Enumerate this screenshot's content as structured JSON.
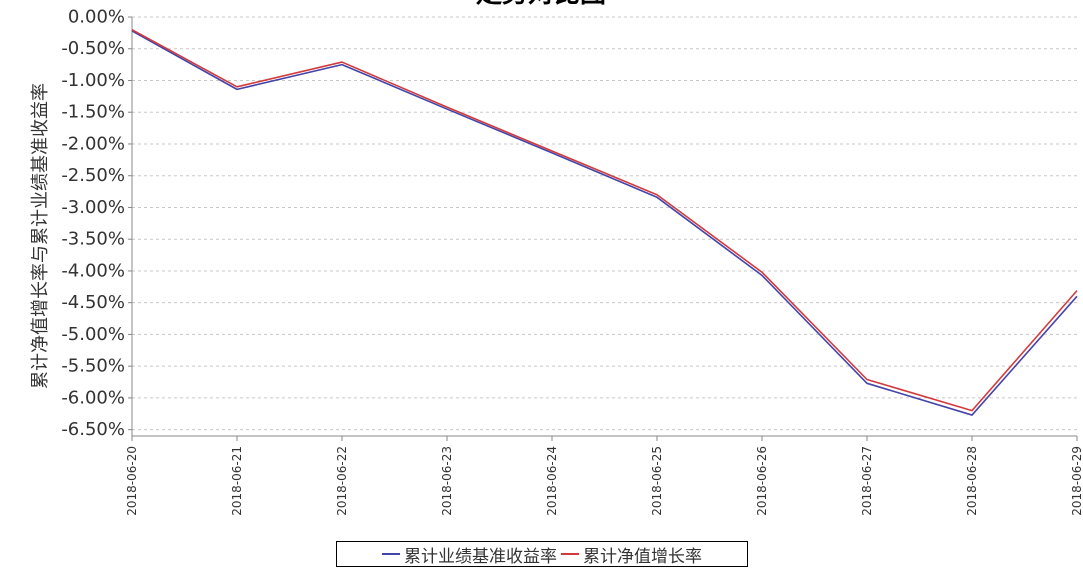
{
  "chart_data": {
    "type": "line",
    "title": "走势对比图",
    "xlabel": "",
    "ylabel": "累计净值增长率与累计业绩基准收益率",
    "categories": [
      "2018-06-20",
      "2018-06-21",
      "2018-06-22",
      "2018-06-23",
      "2018-06-24",
      "2018-06-25",
      "2018-06-26",
      "2018-06-27",
      "2018-06-28",
      "2018-06-29"
    ],
    "y_ticks": [
      "0.00%",
      "-0.50%",
      "-1.00%",
      "-1.50%",
      "-2.00%",
      "-2.50%",
      "-3.00%",
      "-3.50%",
      "-4.00%",
      "-4.50%",
      "-5.00%",
      "-5.50%",
      "-6.00%",
      "-6.50%"
    ],
    "ylim": [
      -6.6,
      0.0
    ],
    "grid": true,
    "legend_position": "bottom",
    "series": [
      {
        "name": "累计业绩基准收益率",
        "color": "#4444aa",
        "values": [
          -0.22,
          -1.14,
          -0.75,
          -1.45,
          -2.14,
          -2.84,
          -4.07,
          -5.77,
          -6.27,
          -4.4
        ]
      },
      {
        "name": "累计净值增长率",
        "color": "#d23b3b",
        "values": [
          -0.2,
          -1.1,
          -0.71,
          -1.42,
          -2.11,
          -2.8,
          -4.02,
          -5.71,
          -6.2,
          -4.31
        ]
      }
    ]
  }
}
